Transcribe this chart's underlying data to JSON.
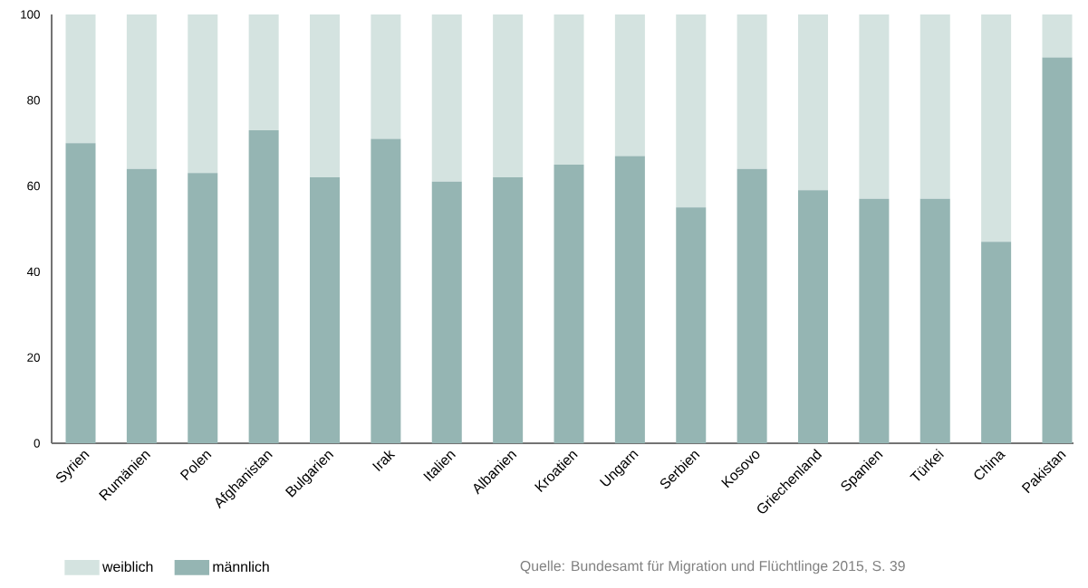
{
  "chart_data": {
    "type": "bar",
    "stacked": true,
    "categories": [
      "Syrien",
      "Rumänien",
      "Polen",
      "Afghanistan",
      "Bulgarien",
      "Irak",
      "Italien",
      "Albanien",
      "Kroatien",
      "Ungarn",
      "Serbien",
      "Kosovo",
      "Griechenland",
      "Spanien",
      "Türkei",
      "China",
      "Pakistan"
    ],
    "series": [
      {
        "name": "männlich",
        "color": "#95b5b3",
        "values": [
          70,
          64,
          63,
          73,
          62,
          71,
          61,
          62,
          65,
          67,
          55,
          64,
          59,
          57,
          57,
          47,
          90
        ]
      },
      {
        "name": "weiblich",
        "color": "#d4e3e0",
        "values": [
          30,
          36,
          37,
          27,
          38,
          29,
          39,
          38,
          35,
          33,
          45,
          36,
          41,
          43,
          43,
          53,
          10
        ]
      }
    ],
    "ylim": [
      0,
      100
    ],
    "yticks": [
      0,
      20,
      40,
      60,
      80,
      100
    ],
    "legend": "bottom left",
    "annotations": [
      "Quelle: Bundesamt für Migration und Flüchtlinge 2015, S. 39"
    ]
  }
}
